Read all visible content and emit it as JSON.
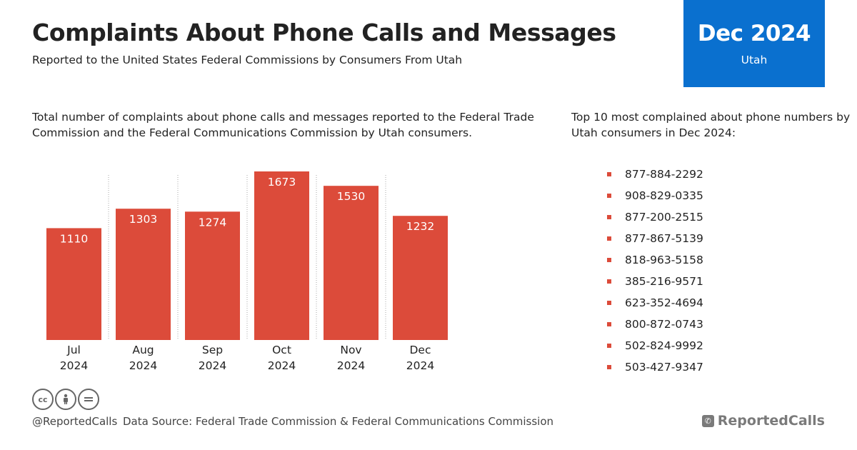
{
  "header": {
    "title": "Complaints About Phone Calls and Messages",
    "subtitle": "Reported to the United States Federal Commissions by Consumers From Utah"
  },
  "date_box": {
    "period": "Dec 2024",
    "region": "Utah",
    "color": "#0a70cf"
  },
  "chart_description": "Total number of complaints about phone calls and messages reported to the Federal Trade Commission and the Federal Communications Commission by Utah consumers.",
  "top_numbers": {
    "description": "Top 10 most complained about phone numbers by Utah consumers in Dec 2024:",
    "items": [
      "877-884-2292",
      "908-829-0335",
      "877-200-2515",
      "877-867-5139",
      "818-963-5158",
      "385-216-9571",
      "623-352-4694",
      "800-872-0743",
      "502-824-9992",
      "503-427-9347"
    ],
    "bullet_color": "#dc4b3a"
  },
  "chart_data": {
    "type": "bar",
    "categories": [
      [
        "Jul",
        "2024"
      ],
      [
        "Aug",
        "2024"
      ],
      [
        "Sep",
        "2024"
      ],
      [
        "Oct",
        "2024"
      ],
      [
        "Nov",
        "2024"
      ],
      [
        "Dec",
        "2024"
      ]
    ],
    "values": [
      1110,
      1303,
      1274,
      1673,
      1530,
      1232
    ],
    "title": "",
    "xlabel": "",
    "ylabel": "",
    "ylim": [
      0,
      1673
    ],
    "bar_color": "#dc4b3a",
    "data_labels": true,
    "vertical_dividers": "dotted",
    "grid": false
  },
  "footer": {
    "handle": "@ReportedCalls",
    "source": "Data Source: Federal Trade Commission & Federal Communications Commission",
    "brand": "ReportedCalls",
    "license_icons": [
      "cc-icon",
      "by-icon",
      "nd-icon"
    ]
  }
}
